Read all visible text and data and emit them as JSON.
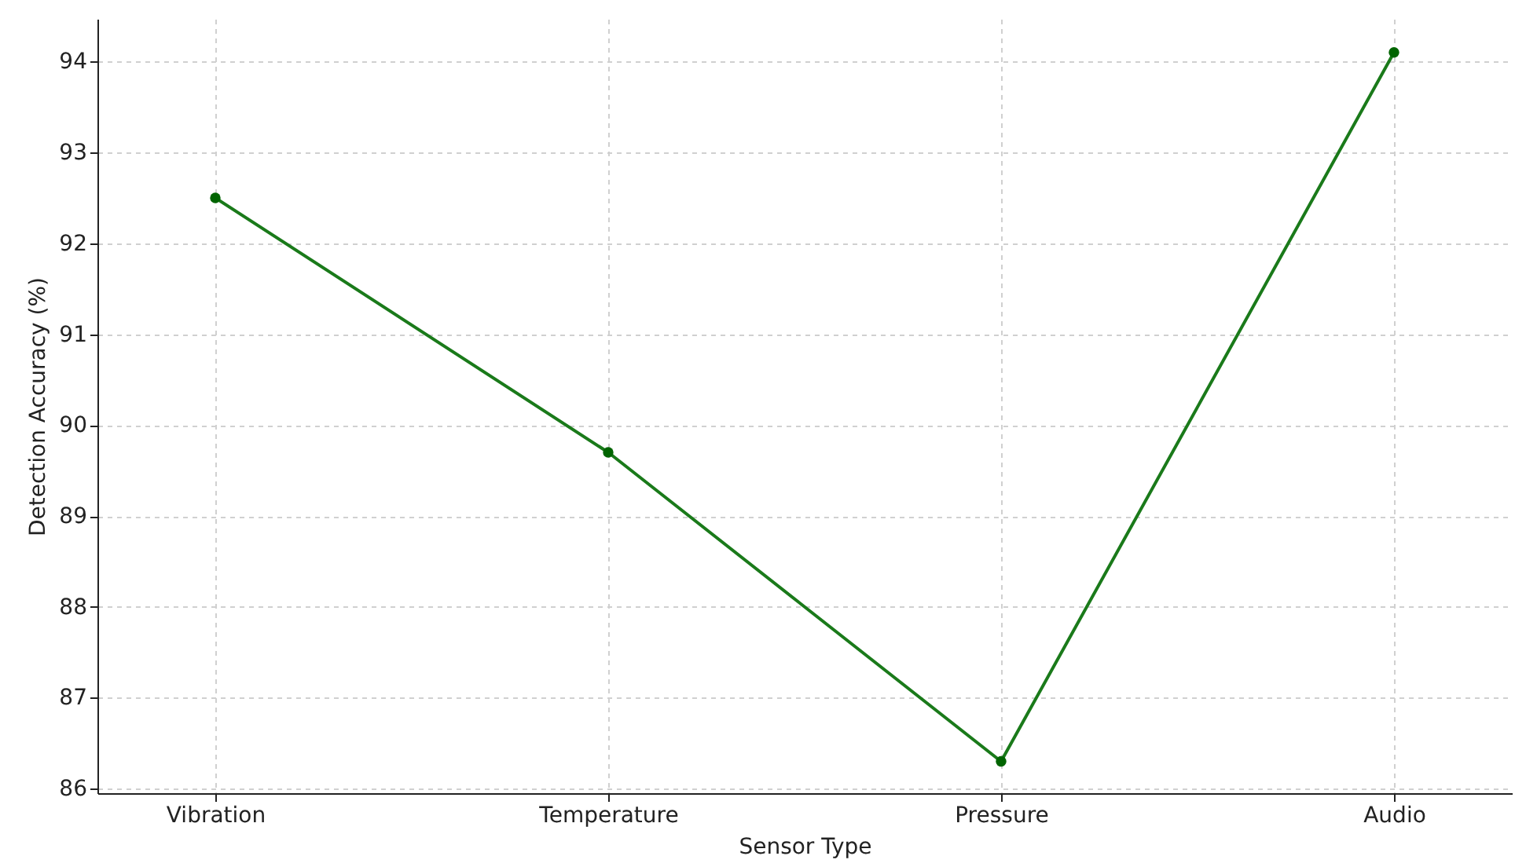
{
  "chart_data": {
    "type": "line",
    "xlabel": "Sensor Type",
    "ylabel": "Detection Accuracy (%)",
    "categories": [
      "Vibration",
      "Temperature",
      "Pressure",
      "Audio"
    ],
    "series": [
      {
        "color": "#1a7a1a",
        "values": [
          92.5,
          89.7,
          86.3,
          94.1
        ]
      }
    ],
    "ylim": [
      85.95,
      94.47
    ],
    "yticks": [
      86,
      87,
      88,
      89,
      90,
      91,
      92,
      93,
      94
    ],
    "grid": true,
    "marker": "circle",
    "line_style": "solid"
  }
}
